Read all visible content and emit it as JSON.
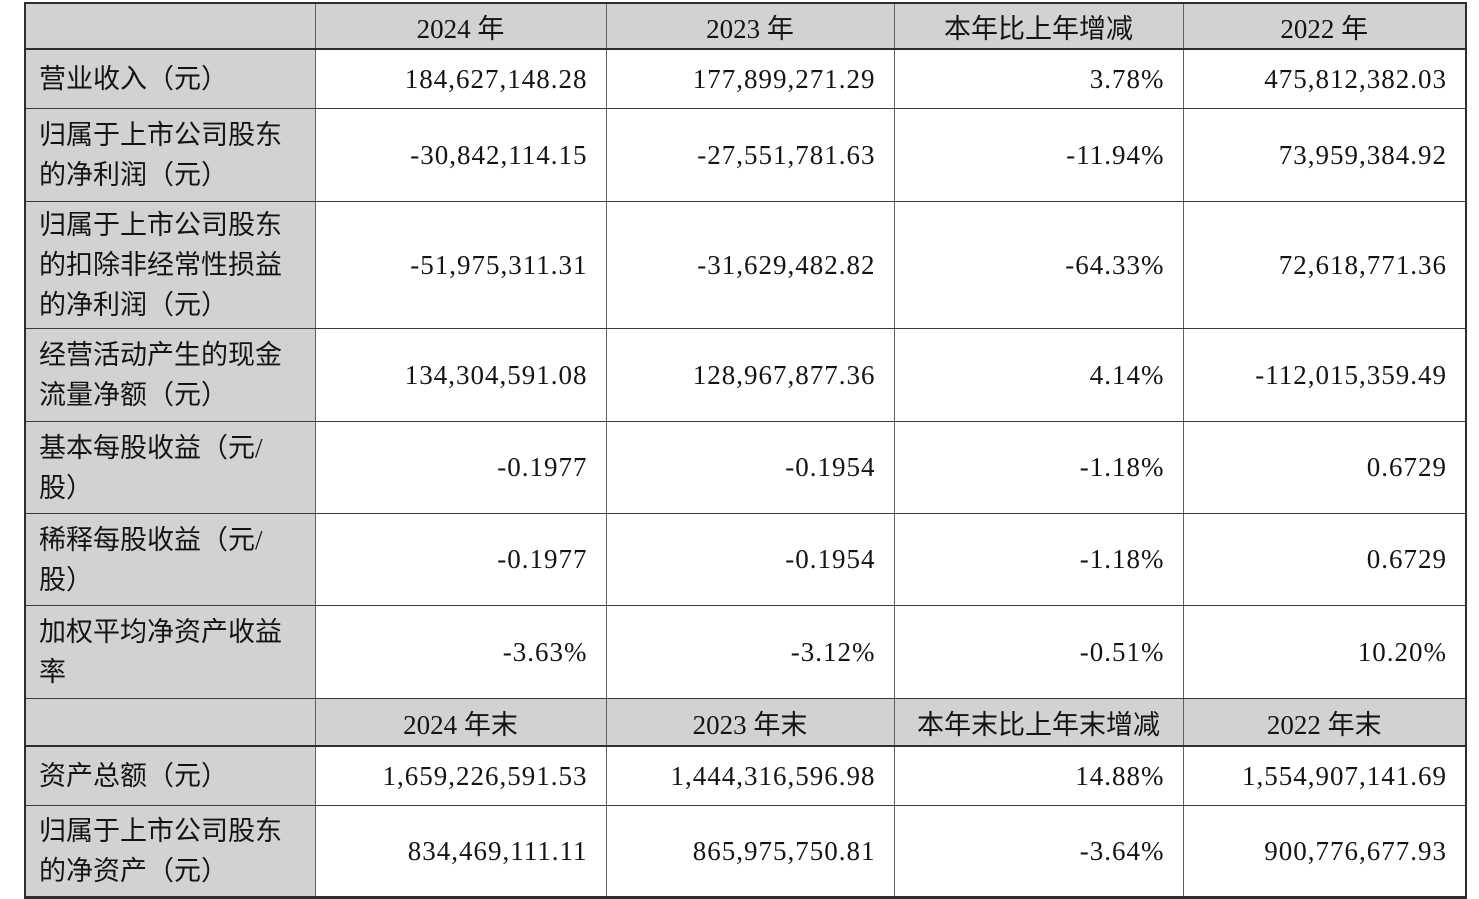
{
  "colors": {
    "cell_gray": "#d2d2d2",
    "border_dark": "#2e2e2e",
    "border_vertical": "#626265",
    "text": "#141414",
    "background": "#ffffff"
  },
  "table": {
    "header1": {
      "cols": [
        "2024 年",
        "2023 年",
        "本年比上年增减",
        "2022 年"
      ]
    },
    "rows1": [
      {
        "label": "营业收入（元）",
        "values": [
          "184,627,148.28",
          "177,899,271.29",
          "3.78%",
          "475,812,382.03"
        ]
      },
      {
        "label": "归属于上市公司股东\n的净利润（元）",
        "values": [
          "-30,842,114.15",
          "-27,551,781.63",
          "-11.94%",
          "73,959,384.92"
        ]
      },
      {
        "label": "归属于上市公司股东\n的扣除非经常性损益\n的净利润（元）",
        "values": [
          "-51,975,311.31",
          "-31,629,482.82",
          "-64.33%",
          "72,618,771.36"
        ]
      },
      {
        "label": "经营活动产生的现金\n流量净额（元）",
        "values": [
          "134,304,591.08",
          "128,967,877.36",
          "4.14%",
          "-112,015,359.49"
        ]
      },
      {
        "label": "基本每股收益（元/\n股）",
        "values": [
          "-0.1977",
          "-0.1954",
          "-1.18%",
          "0.6729"
        ]
      },
      {
        "label": "稀释每股收益（元/\n股）",
        "values": [
          "-0.1977",
          "-0.1954",
          "-1.18%",
          "0.6729"
        ]
      },
      {
        "label": "加权平均净资产收益\n率",
        "values": [
          "-3.63%",
          "-3.12%",
          "-0.51%",
          "10.20%"
        ]
      }
    ],
    "header2": {
      "cols": [
        "2024 年末",
        "2023 年末",
        "本年末比上年末增减",
        "2022 年末"
      ]
    },
    "rows2": [
      {
        "label": "资产总额（元）",
        "values": [
          "1,659,226,591.53",
          "1,444,316,596.98",
          "14.88%",
          "1,554,907,141.69"
        ]
      },
      {
        "label": "归属于上市公司股东\n的净资产（元）",
        "values": [
          "834,469,111.11",
          "865,975,750.81",
          "-3.64%",
          "900,776,677.93"
        ]
      }
    ]
  }
}
